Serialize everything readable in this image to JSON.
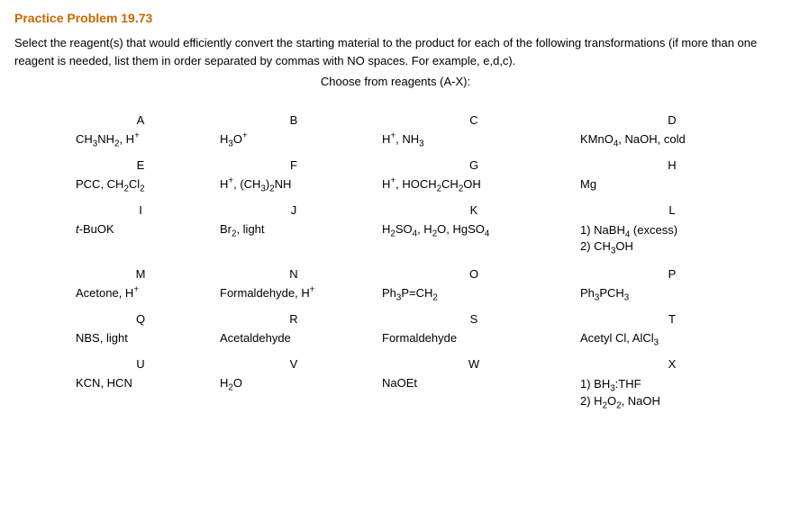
{
  "title": "Practice Problem 19.73",
  "instructions": "Select the reagent(s) that would efficiently convert the starting material to the product for each of the following transformations (if more than one reagent is needed, list them in order separated by commas with NO spaces. For example, e,d,c).",
  "choose_line": "Choose from reagents (A-X):",
  "colors": {
    "title": "#cc6600",
    "text": "#000000",
    "background": "#ffffff"
  },
  "grid": {
    "columns": [
      "A",
      "B",
      "C",
      "D"
    ],
    "rows": [
      {
        "letters": [
          "A",
          "B",
          "C",
          "D"
        ],
        "reagents_html": [
          "CH<sub>3</sub>NH<sub>2</sub>, H<sup>+</sup>",
          "H<sub>3</sub>O<sup>+</sup>",
          "H<sup>+</sup>, NH<sub>3</sub>",
          "KMnO<sub>4</sub>, NaOH, cold"
        ]
      },
      {
        "letters": [
          "E",
          "F",
          "G",
          "H"
        ],
        "reagents_html": [
          "PCC, CH<sub>2</sub>Cl<sub>2</sub>",
          "H<sup>+</sup>, (CH<sub>3</sub>)<sub>2</sub>NH",
          "H<sup>+</sup>, HOCH<sub>2</sub>CH<sub>2</sub>OH",
          "Mg"
        ]
      },
      {
        "letters": [
          "I",
          "J",
          "K",
          "L"
        ],
        "reagents_html": [
          "<span class='ital'>t</span>-BuOK",
          "Br<sub>2</sub>, light",
          "H<sub>2</sub>SO<sub>4</sub>, H<sub>2</sub>O, HgSO<sub>4</sub>",
          "1) NaBH<sub>4</sub> (excess)<br>2) CH<sub>3</sub>OH"
        ]
      },
      {
        "letters": [
          "M",
          "N",
          "O",
          "P"
        ],
        "reagents_html": [
          "Acetone, H<sup>+</sup>",
          "Formaldehyde, H<sup>+</sup>",
          "Ph<sub>3</sub>P=CH<sub>2</sub>",
          "Ph<sub>3</sub>PCH<sub>3</sub>"
        ]
      },
      {
        "letters": [
          "Q",
          "R",
          "S",
          "T"
        ],
        "reagents_html": [
          "NBS, light",
          "Acetaldehyde",
          "Formaldehyde",
          "Acetyl Cl, AlCl<sub>3</sub>"
        ]
      },
      {
        "letters": [
          "U",
          "V",
          "W",
          "X"
        ],
        "reagents_html": [
          "KCN, HCN",
          "H<sub>2</sub>O",
          "NaOEt",
          "1) BH<sub>3</sub>:THF<br>2) H<sub>2</sub>O<sub>2</sub>, NaOH"
        ]
      }
    ]
  }
}
